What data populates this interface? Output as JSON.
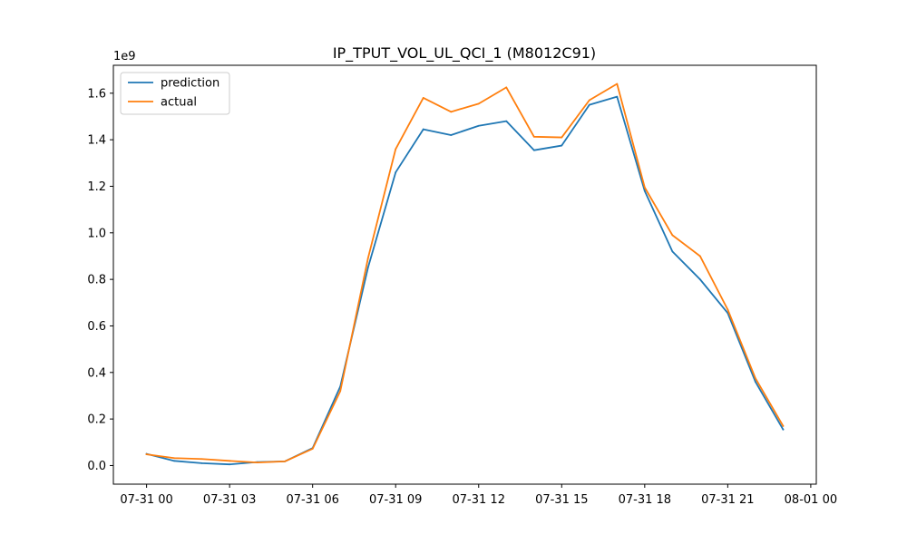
{
  "chart_data": {
    "type": "line",
    "title": "IP_TPUT_VOL_UL_QCI_1 (M8012C91)",
    "xlabel": "",
    "ylabel": "",
    "y_offset_label": "1e9",
    "x": [
      "07-31 00",
      "07-31 01",
      "07-31 02",
      "07-31 03",
      "07-31 04",
      "07-31 05",
      "07-31 06",
      "07-31 07",
      "07-31 08",
      "07-31 09",
      "07-31 10",
      "07-31 11",
      "07-31 12",
      "07-31 13",
      "07-31 14",
      "07-31 15",
      "07-31 16",
      "07-31 17",
      "07-31 18",
      "07-31 19",
      "07-31 20",
      "07-31 21",
      "07-31 22",
      "07-31 23"
    ],
    "x_hours": [
      0,
      1,
      2,
      3,
      4,
      5,
      6,
      7,
      8,
      9,
      10,
      11,
      12,
      13,
      14,
      15,
      16,
      17,
      18,
      19,
      20,
      21,
      22,
      23
    ],
    "xlim_hours": [
      -1.2,
      24.2
    ],
    "x_ticks": [
      {
        "hour": 0,
        "label": "07-31 00"
      },
      {
        "hour": 3,
        "label": "07-31 03"
      },
      {
        "hour": 6,
        "label": "07-31 06"
      },
      {
        "hour": 9,
        "label": "07-31 09"
      },
      {
        "hour": 12,
        "label": "07-31 12"
      },
      {
        "hour": 15,
        "label": "07-31 15"
      },
      {
        "hour": 18,
        "label": "07-31 18"
      },
      {
        "hour": 21,
        "label": "07-31 21"
      },
      {
        "hour": 24,
        "label": "08-01 00"
      }
    ],
    "ylim": [
      -0.08,
      1.72
    ],
    "y_ticks": [
      {
        "value": 0.0,
        "label": "0.0"
      },
      {
        "value": 0.2,
        "label": "0.2"
      },
      {
        "value": 0.4,
        "label": "0.4"
      },
      {
        "value": 0.6,
        "label": "0.6"
      },
      {
        "value": 0.8,
        "label": "0.8"
      },
      {
        "value": 1.0,
        "label": "1.0"
      },
      {
        "value": 1.2,
        "label": "1.2"
      },
      {
        "value": 1.4,
        "label": "1.4"
      },
      {
        "value": 1.6,
        "label": "1.6"
      }
    ],
    "grid": false,
    "legend_position": "top-left",
    "series": [
      {
        "name": "prediction",
        "color": "#1f77b4",
        "values": [
          0.05,
          0.02,
          0.01,
          0.005,
          0.015,
          0.018,
          0.075,
          0.34,
          0.85,
          1.26,
          1.445,
          1.42,
          1.46,
          1.48,
          1.355,
          1.375,
          1.55,
          1.585,
          1.18,
          0.92,
          0.8,
          0.655,
          0.36,
          0.155
        ]
      },
      {
        "name": "actual",
        "color": "#ff7f0e",
        "values": [
          0.048,
          0.032,
          0.028,
          0.02,
          0.013,
          0.018,
          0.072,
          0.32,
          0.89,
          1.36,
          1.58,
          1.52,
          1.555,
          1.625,
          1.413,
          1.41,
          1.57,
          1.64,
          1.195,
          0.99,
          0.9,
          0.67,
          0.375,
          0.17
        ]
      }
    ]
  }
}
